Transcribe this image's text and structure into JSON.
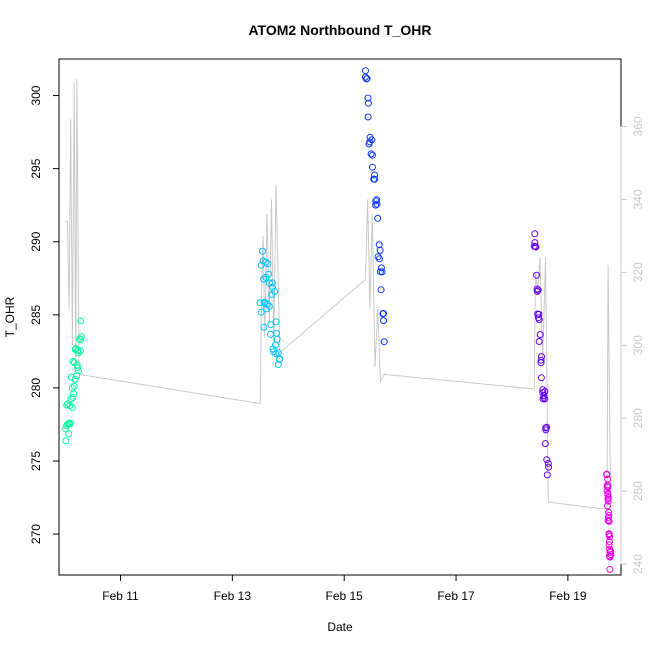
{
  "chart_data": {
    "type": "scatter",
    "title": "ATOM2 Northbound T_OHR",
    "xlabel": "Date",
    "ylabel": "T_OHR",
    "x_ticks": [
      "Feb 11",
      "Feb 13",
      "Feb 15",
      "Feb 17",
      "Feb 19"
    ],
    "x_tick_days": [
      11,
      13,
      15,
      17,
      19
    ],
    "xlim_days": [
      9.9,
      19.95
    ],
    "ylim": [
      267.2,
      302.5
    ],
    "y_ticks": [
      270,
      275,
      280,
      285,
      290,
      295,
      300
    ],
    "y2_ticks": [
      240,
      260,
      280,
      300,
      320,
      340,
      360
    ],
    "y2lim": [
      237.0,
      378.5
    ],
    "grid": false,
    "colors": {
      "line2": "#c8c8c8",
      "frame": "#000000",
      "axis2": "#c8c8c8"
    },
    "series": [
      {
        "color": "#00ffa0",
        "segments": [
          {
            "t0": 10.02,
            "t1": 10.3,
            "y0": 277.0,
            "y1": 283.7,
            "spread": 1.6
          }
        ]
      },
      {
        "color": "#00c3ff",
        "segments": [
          {
            "t0": 13.5,
            "t1": 13.85,
            "y0": 287.2,
            "y1": 284.0,
            "spread": 2.6
          }
        ]
      },
      {
        "color": "#0a37ff",
        "segments": [
          {
            "t0": 15.38,
            "t1": 15.72,
            "y0": 301.5,
            "y1": 284.5,
            "spread": 1.4
          }
        ]
      },
      {
        "color": "#6400ff",
        "segments": [
          {
            "t0": 18.4,
            "t1": 18.65,
            "y0": 290.5,
            "y1": 274.0,
            "spread": 1.4
          }
        ]
      },
      {
        "color": "#f000f0",
        "segments": [
          {
            "t0": 19.7,
            "t1": 19.76,
            "y0": 274.0,
            "y1": 268.0,
            "spread": 0.6
          }
        ]
      }
    ],
    "secondary_line": [
      [
        10.02,
        334
      ],
      [
        10.05,
        334
      ],
      [
        10.08,
        310
      ],
      [
        10.11,
        362
      ],
      [
        10.14,
        300
      ],
      [
        10.17,
        372
      ],
      [
        10.2,
        293
      ],
      [
        10.22,
        373
      ],
      [
        10.26,
        292
      ],
      [
        13.5,
        284
      ],
      [
        13.52,
        312
      ],
      [
        13.55,
        330
      ],
      [
        13.58,
        302
      ],
      [
        13.62,
        336
      ],
      [
        13.66,
        306
      ],
      [
        13.7,
        340
      ],
      [
        13.74,
        300
      ],
      [
        13.78,
        344
      ],
      [
        13.85,
        298
      ],
      [
        15.38,
        318
      ],
      [
        15.42,
        340
      ],
      [
        15.46,
        310
      ],
      [
        15.5,
        336
      ],
      [
        15.55,
        294
      ],
      [
        15.6,
        310
      ],
      [
        15.65,
        290
      ],
      [
        15.72,
        292
      ],
      [
        18.4,
        288
      ],
      [
        18.42,
        320
      ],
      [
        18.46,
        315
      ],
      [
        18.5,
        324
      ],
      [
        18.55,
        296
      ],
      [
        18.6,
        324
      ],
      [
        18.65,
        257
      ],
      [
        19.7,
        255
      ],
      [
        19.72,
        322
      ],
      [
        19.76,
        262
      ]
    ]
  }
}
